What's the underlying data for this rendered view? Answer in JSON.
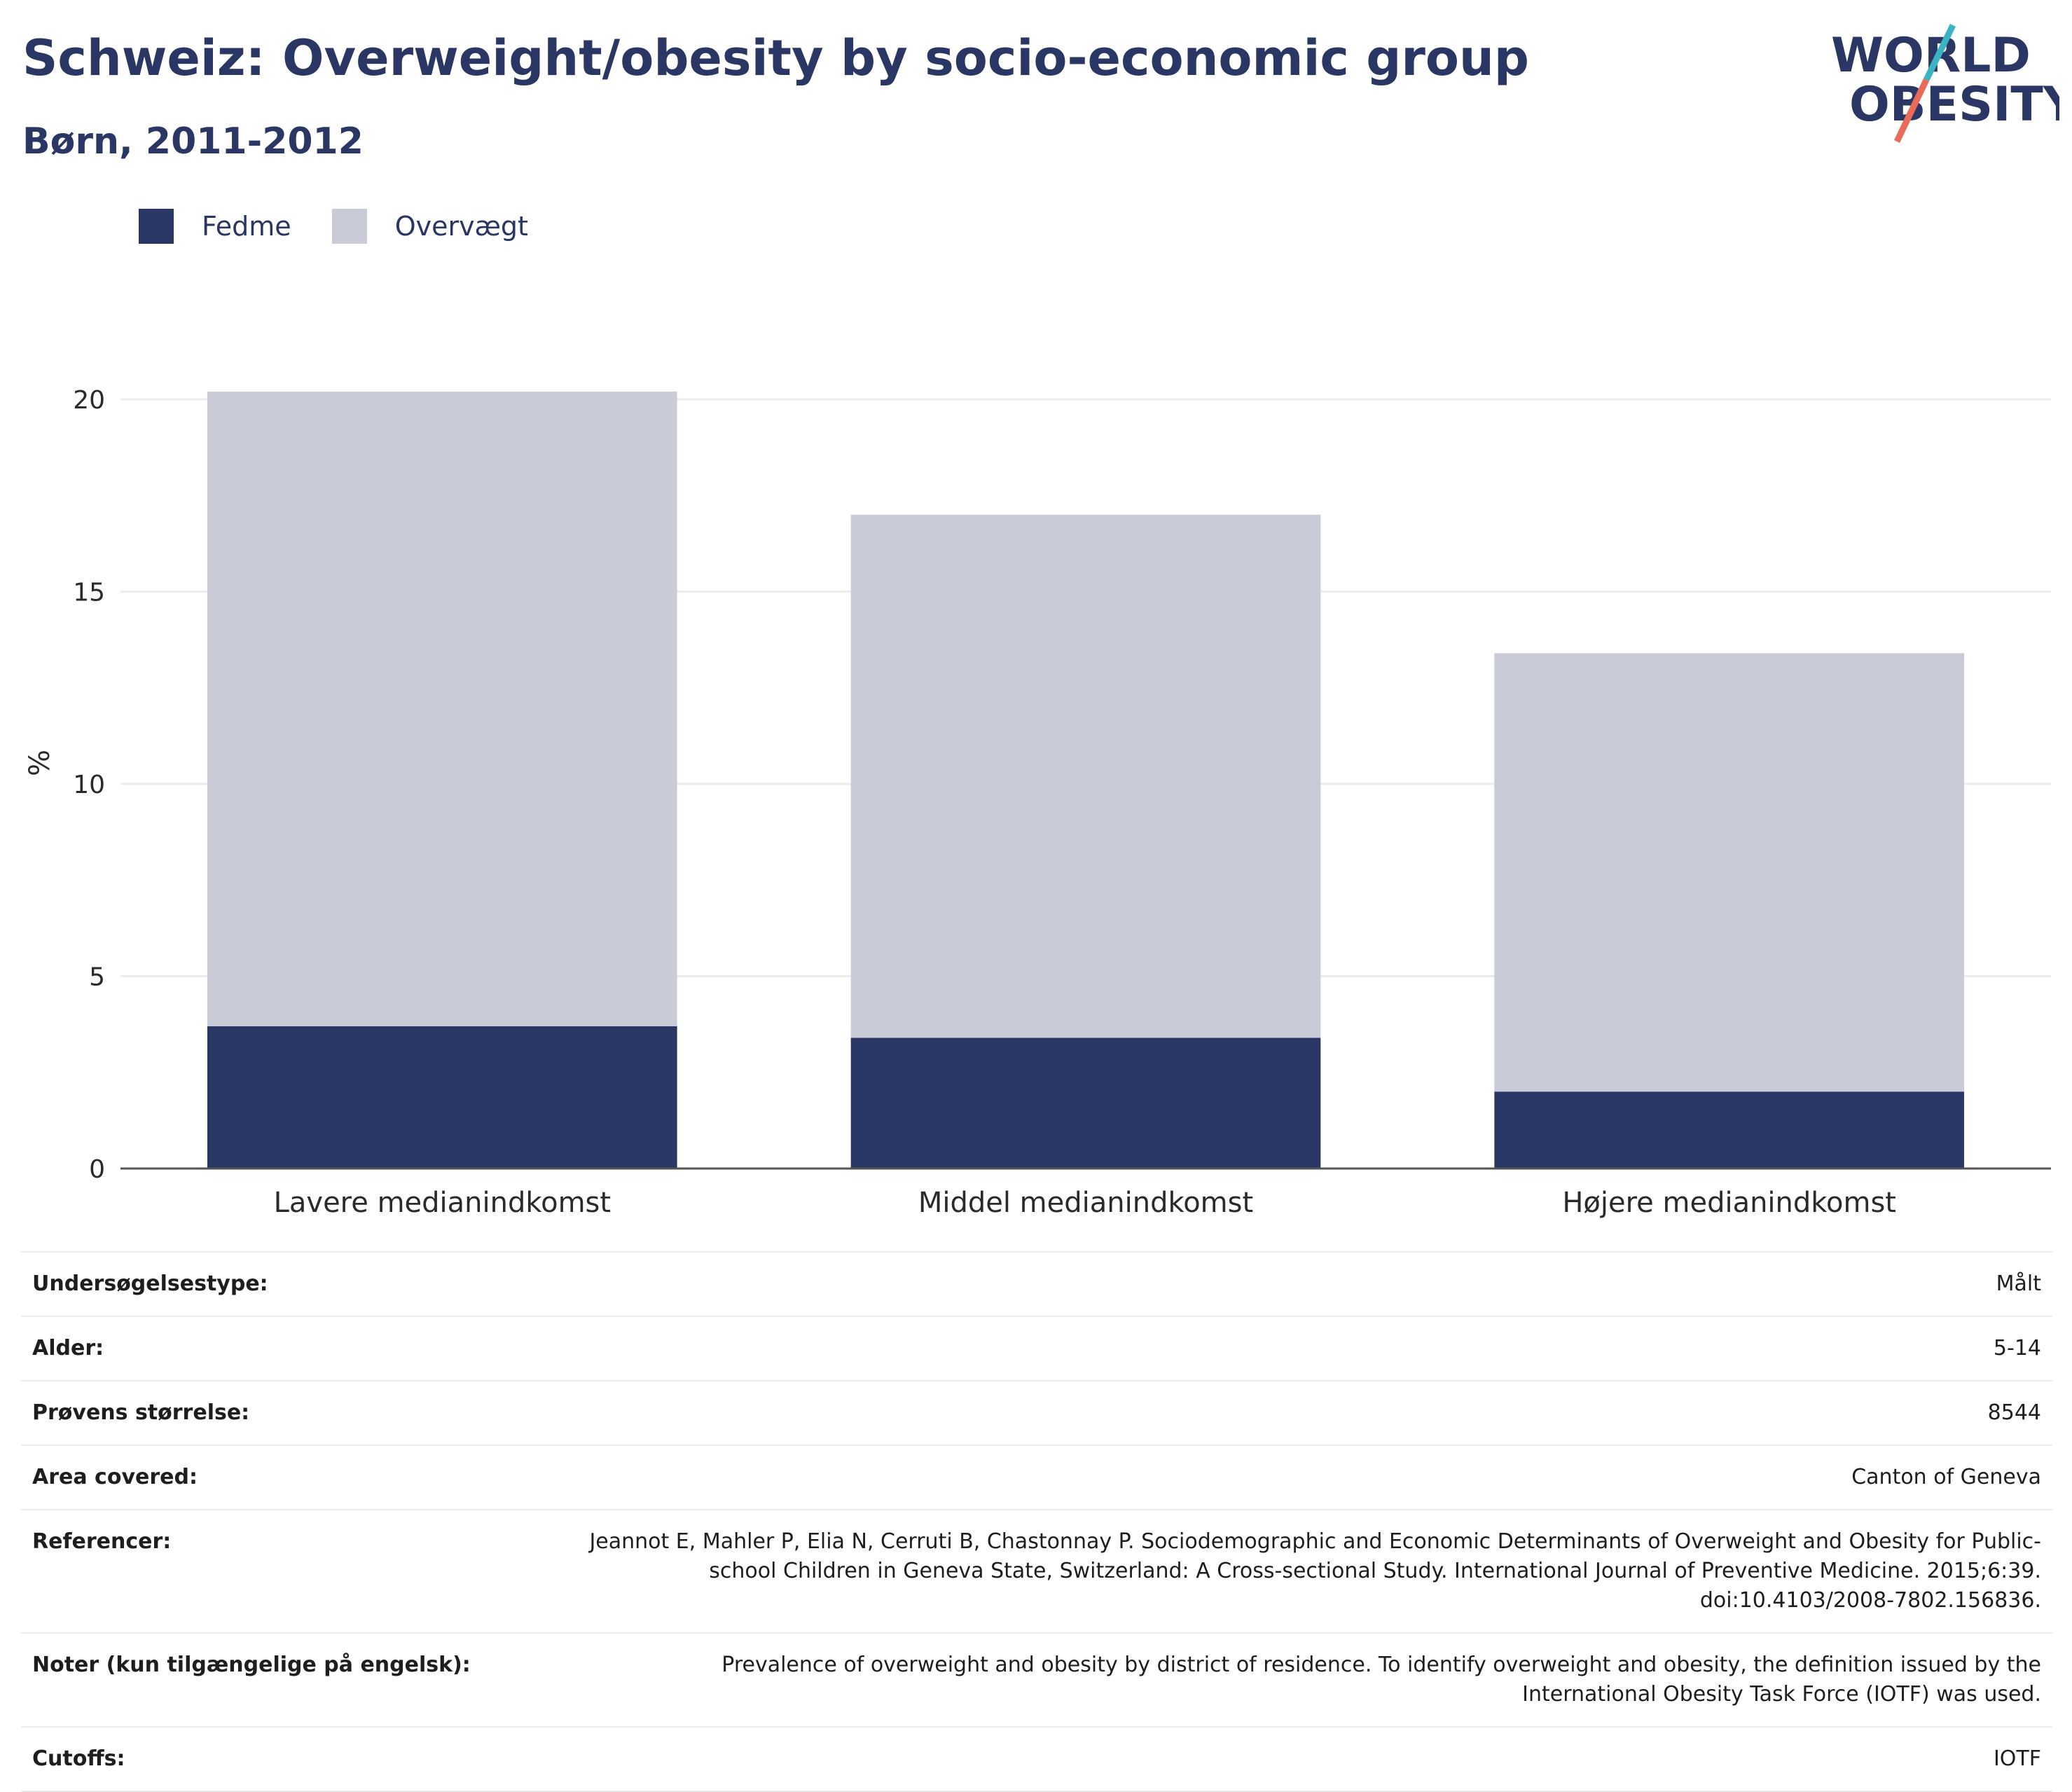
{
  "header": {
    "title": "Schweiz: Overweight/obesity by socio-economic group",
    "subtitle": "Børn, 2011-2012"
  },
  "logo": {
    "line1": "WORLD",
    "line2": "OBESITY",
    "text_color": "#2a3663",
    "slash_colors": [
      "#3bb3c3",
      "#e96c5b"
    ]
  },
  "colors": {
    "fedme": "#2a3663",
    "overvaegt": "#c9ccd8",
    "grid": "#ececec",
    "axis": "#555555"
  },
  "chart_data": {
    "type": "bar",
    "stacked": true,
    "categories": [
      "Lavere medianindkomst",
      "Middel medianindkomst",
      "Højere medianindkomst"
    ],
    "series": [
      {
        "name": "Fedme",
        "values": [
          3.7,
          3.4,
          2.0
        ]
      },
      {
        "name": "Overvægt",
        "values": [
          16.5,
          13.6,
          11.4
        ]
      }
    ],
    "ylabel": "%",
    "ylim": [
      0,
      20
    ],
    "yticks": [
      0,
      5,
      10,
      15,
      20
    ],
    "grid": true,
    "legend_position": "top-left"
  },
  "meta": {
    "rows": [
      {
        "key": "Undersøgelsestype:",
        "value": "Målt"
      },
      {
        "key": "Alder:",
        "value": "5-14"
      },
      {
        "key": "Prøvens størrelse:",
        "value": "8544"
      },
      {
        "key": "Area covered:",
        "value": "Canton of Geneva"
      },
      {
        "key": "Referencer:",
        "value": "Jeannot E, Mahler P, Elia N, Cerruti B, Chastonnay P. Sociodemographic and Economic Determinants of Overweight and Obesity for Public-school Children in Geneva State, Switzerland: A Cross-sectional Study. International Journal of Preventive Medicine. 2015;6:39. doi:10.4103/2008-7802.156836."
      },
      {
        "key": "Noter (kun tilgængelige på engelsk):",
        "value": "Prevalence of overweight and obesity by district of residence. To identify overweight and obesity, the definition issued by the International Obesity Task Force (IOTF) was used."
      },
      {
        "key": "Cutoffs:",
        "value": "IOTF"
      }
    ]
  }
}
